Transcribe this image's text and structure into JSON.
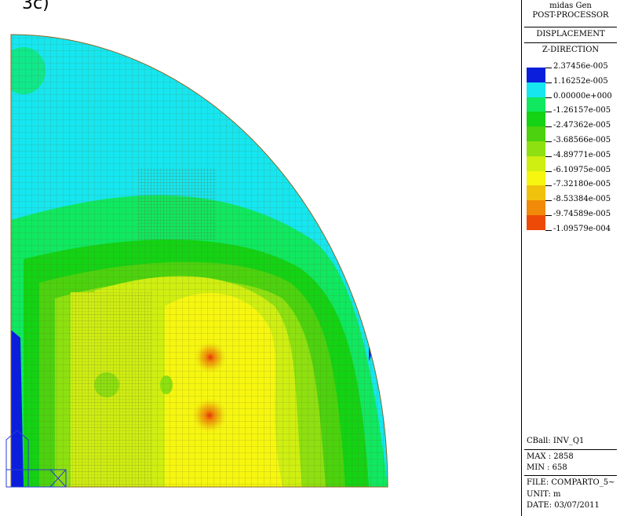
{
  "partial_label": "3c)",
  "header": {
    "app": "midas Gen",
    "module": "POST-PROCESSOR",
    "result": "DISPLACEMENT",
    "component": "Z-DIRECTION"
  },
  "legend": {
    "colors": [
      "#0a1edc",
      "#16e6f0",
      "#10e860",
      "#14d214",
      "#4cd20e",
      "#8ee010",
      "#cfee12",
      "#f6f610",
      "#f0c20e",
      "#f08a08",
      "#ec4a06"
    ],
    "values": [
      "2.37456e-005",
      "1.16252e-005",
      "0.00000e+000",
      "-1.26157e-005",
      "-2.47362e-005",
      "-3.68566e-005",
      "-4.89771e-005",
      "-6.10975e-005",
      "-7.32180e-005",
      "-8.53384e-005",
      "-9.74589e-005",
      "-1.09579e-004"
    ]
  },
  "info": {
    "cball": "CBall: INV_Q1",
    "max": "MAX : 2858",
    "min": "MIN : 658",
    "file": "FILE: COMPARTO_5~",
    "unit": "UNIT: m",
    "date": "DATE: 03/07/2011"
  }
}
